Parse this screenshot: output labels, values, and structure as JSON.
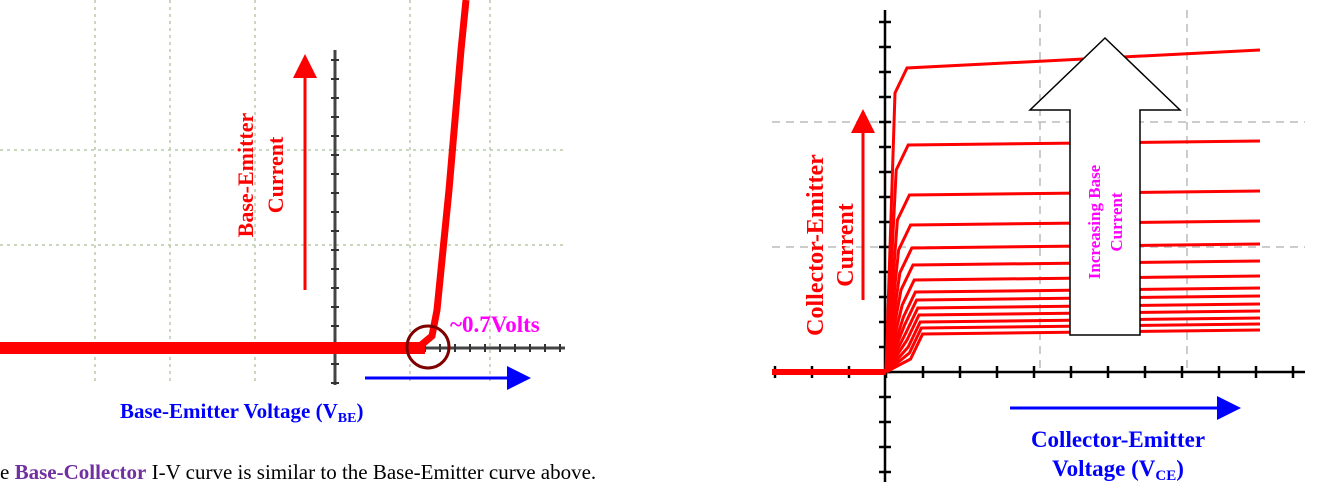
{
  "left_plot": {
    "y_label_line1": "Base-Emitter",
    "y_label_line2": "Current",
    "annotation": "~0.7Volts",
    "x_label": "Base-Emitter Voltage (V",
    "x_label_sub": "BE",
    "x_label_end": ")"
  },
  "right_plot": {
    "y_label_line1": "Collector-Emitter",
    "y_label_line2": "Current",
    "arrow_label_line1": "Increasing Base",
    "arrow_label_line2": "Current",
    "x_label_line1": "Collector-Emitter",
    "x_label_line2": "Voltage (V",
    "x_label_sub": "CE",
    "x_label_end": ")"
  },
  "caption": {
    "start": "e ",
    "highlight": "Base-Collector",
    "rest": " I-V curve is similar to the Base-Emitter curve above."
  }
}
